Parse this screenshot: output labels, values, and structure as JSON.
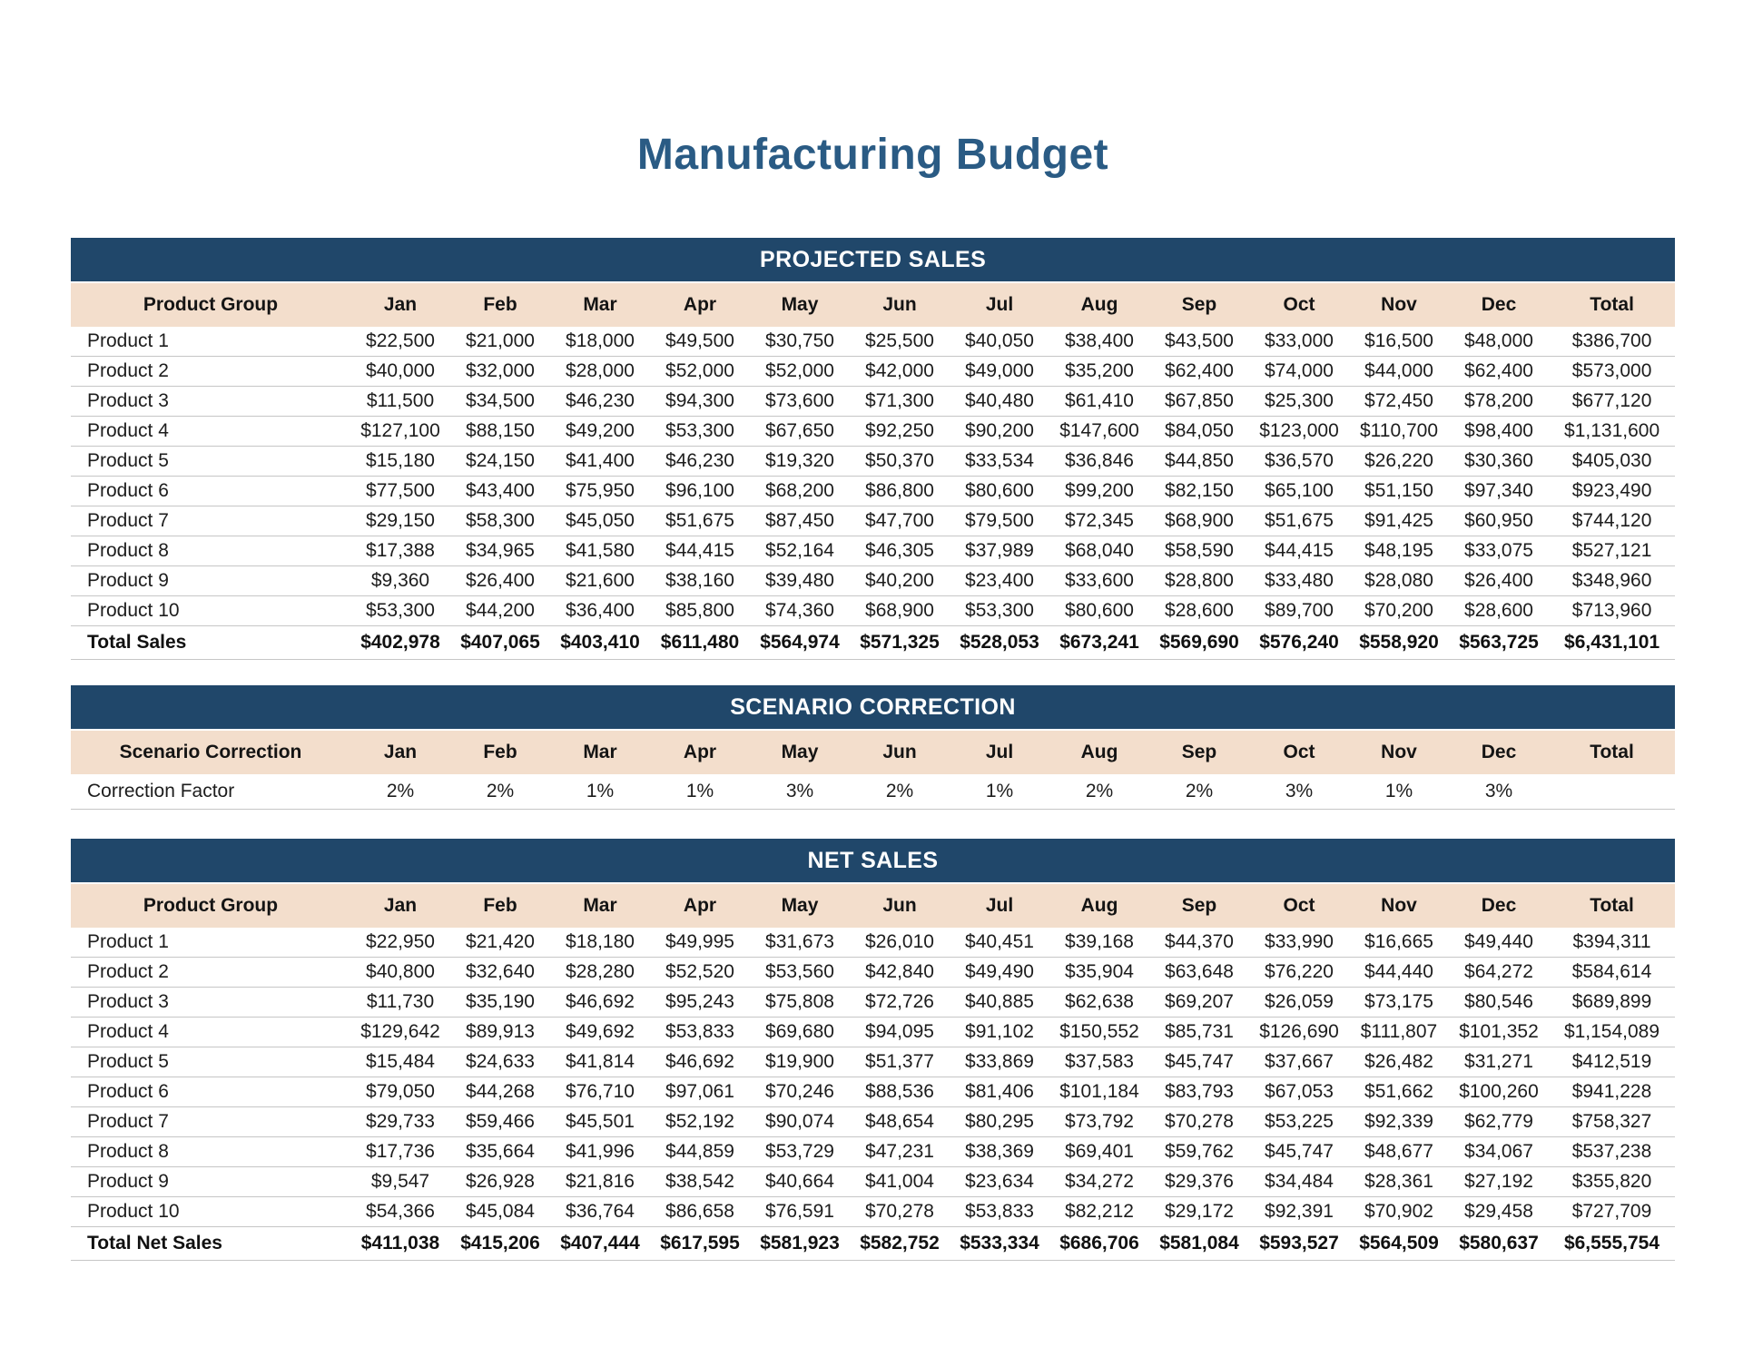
{
  "title": "Manufacturing Budget",
  "months": [
    "Jan",
    "Feb",
    "Mar",
    "Apr",
    "May",
    "Jun",
    "Jul",
    "Aug",
    "Sep",
    "Oct",
    "Nov",
    "Dec"
  ],
  "total_column_label": "Total",
  "colors": {
    "header_bar": "#20476A",
    "column_header_bg": "#F3DECC",
    "title_text": "#2A5B84",
    "bar_text": "#FFFFFF",
    "row_divider": "#C6C6C6",
    "body_text": "#1D1D1D"
  },
  "sections": {
    "projected_sales": {
      "section_title": "PROJECTED SALES",
      "group_header": "Product Group",
      "rows": [
        {
          "label": "Product 1",
          "values": [
            "$22,500",
            "$21,000",
            "$18,000",
            "$49,500",
            "$30,750",
            "$25,500",
            "$40,050",
            "$38,400",
            "$43,500",
            "$33,000",
            "$16,500",
            "$48,000"
          ],
          "total": "$386,700"
        },
        {
          "label": "Product 2",
          "values": [
            "$40,000",
            "$32,000",
            "$28,000",
            "$52,000",
            "$52,000",
            "$42,000",
            "$49,000",
            "$35,200",
            "$62,400",
            "$74,000",
            "$44,000",
            "$62,400"
          ],
          "total": "$573,000"
        },
        {
          "label": "Product 3",
          "values": [
            "$11,500",
            "$34,500",
            "$46,230",
            "$94,300",
            "$73,600",
            "$71,300",
            "$40,480",
            "$61,410",
            "$67,850",
            "$25,300",
            "$72,450",
            "$78,200"
          ],
          "total": "$677,120"
        },
        {
          "label": "Product 4",
          "values": [
            "$127,100",
            "$88,150",
            "$49,200",
            "$53,300",
            "$67,650",
            "$92,250",
            "$90,200",
            "$147,600",
            "$84,050",
            "$123,000",
            "$110,700",
            "$98,400"
          ],
          "total": "$1,131,600"
        },
        {
          "label": "Product 5",
          "values": [
            "$15,180",
            "$24,150",
            "$41,400",
            "$46,230",
            "$19,320",
            "$50,370",
            "$33,534",
            "$36,846",
            "$44,850",
            "$36,570",
            "$26,220",
            "$30,360"
          ],
          "total": "$405,030"
        },
        {
          "label": "Product 6",
          "values": [
            "$77,500",
            "$43,400",
            "$75,950",
            "$96,100",
            "$68,200",
            "$86,800",
            "$80,600",
            "$99,200",
            "$82,150",
            "$65,100",
            "$51,150",
            "$97,340"
          ],
          "total": "$923,490"
        },
        {
          "label": "Product 7",
          "values": [
            "$29,150",
            "$58,300",
            "$45,050",
            "$51,675",
            "$87,450",
            "$47,700",
            "$79,500",
            "$72,345",
            "$68,900",
            "$51,675",
            "$91,425",
            "$60,950"
          ],
          "total": "$744,120"
        },
        {
          "label": "Product 8",
          "values": [
            "$17,388",
            "$34,965",
            "$41,580",
            "$44,415",
            "$52,164",
            "$46,305",
            "$37,989",
            "$68,040",
            "$58,590",
            "$44,415",
            "$48,195",
            "$33,075"
          ],
          "total": "$527,121"
        },
        {
          "label": "Product 9",
          "values": [
            "$9,360",
            "$26,400",
            "$21,600",
            "$38,160",
            "$39,480",
            "$40,200",
            "$23,400",
            "$33,600",
            "$28,800",
            "$33,480",
            "$28,080",
            "$26,400"
          ],
          "total": "$348,960"
        },
        {
          "label": "Product 10",
          "values": [
            "$53,300",
            "$44,200",
            "$36,400",
            "$85,800",
            "$74,360",
            "$68,900",
            "$53,300",
            "$80,600",
            "$28,600",
            "$89,700",
            "$70,200",
            "$28,600"
          ],
          "total": "$713,960"
        }
      ],
      "total_row": {
        "label": "Total Sales",
        "values": [
          "$402,978",
          "$407,065",
          "$403,410",
          "$611,480",
          "$564,974",
          "$571,325",
          "$528,053",
          "$673,241",
          "$569,690",
          "$576,240",
          "$558,920",
          "$563,725"
        ],
        "total": "$6,431,101"
      }
    },
    "scenario_correction": {
      "section_title": "SCENARIO CORRECTION",
      "group_header": "Scenario Correction",
      "rows": [
        {
          "label": "Correction Factor",
          "values": [
            "2%",
            "2%",
            "1%",
            "1%",
            "3%",
            "2%",
            "1%",
            "2%",
            "2%",
            "3%",
            "1%",
            "3%"
          ],
          "total": ""
        }
      ]
    },
    "net_sales": {
      "section_title": "NET SALES",
      "group_header": "Product Group",
      "rows": [
        {
          "label": "Product 1",
          "values": [
            "$22,950",
            "$21,420",
            "$18,180",
            "$49,995",
            "$31,673",
            "$26,010",
            "$40,451",
            "$39,168",
            "$44,370",
            "$33,990",
            "$16,665",
            "$49,440"
          ],
          "total": "$394,311"
        },
        {
          "label": "Product 2",
          "values": [
            "$40,800",
            "$32,640",
            "$28,280",
            "$52,520",
            "$53,560",
            "$42,840",
            "$49,490",
            "$35,904",
            "$63,648",
            "$76,220",
            "$44,440",
            "$64,272"
          ],
          "total": "$584,614"
        },
        {
          "label": "Product 3",
          "values": [
            "$11,730",
            "$35,190",
            "$46,692",
            "$95,243",
            "$75,808",
            "$72,726",
            "$40,885",
            "$62,638",
            "$69,207",
            "$26,059",
            "$73,175",
            "$80,546"
          ],
          "total": "$689,899"
        },
        {
          "label": "Product 4",
          "values": [
            "$129,642",
            "$89,913",
            "$49,692",
            "$53,833",
            "$69,680",
            "$94,095",
            "$91,102",
            "$150,552",
            "$85,731",
            "$126,690",
            "$111,807",
            "$101,352"
          ],
          "total": "$1,154,089"
        },
        {
          "label": "Product 5",
          "values": [
            "$15,484",
            "$24,633",
            "$41,814",
            "$46,692",
            "$19,900",
            "$51,377",
            "$33,869",
            "$37,583",
            "$45,747",
            "$37,667",
            "$26,482",
            "$31,271"
          ],
          "total": "$412,519"
        },
        {
          "label": "Product 6",
          "values": [
            "$79,050",
            "$44,268",
            "$76,710",
            "$97,061",
            "$70,246",
            "$88,536",
            "$81,406",
            "$101,184",
            "$83,793",
            "$67,053",
            "$51,662",
            "$100,260"
          ],
          "total": "$941,228"
        },
        {
          "label": "Product 7",
          "values": [
            "$29,733",
            "$59,466",
            "$45,501",
            "$52,192",
            "$90,074",
            "$48,654",
            "$80,295",
            "$73,792",
            "$70,278",
            "$53,225",
            "$92,339",
            "$62,779"
          ],
          "total": "$758,327"
        },
        {
          "label": "Product 8",
          "values": [
            "$17,736",
            "$35,664",
            "$41,996",
            "$44,859",
            "$53,729",
            "$47,231",
            "$38,369",
            "$69,401",
            "$59,762",
            "$45,747",
            "$48,677",
            "$34,067"
          ],
          "total": "$537,238"
        },
        {
          "label": "Product 9",
          "values": [
            "$9,547",
            "$26,928",
            "$21,816",
            "$38,542",
            "$40,664",
            "$41,004",
            "$23,634",
            "$34,272",
            "$29,376",
            "$34,484",
            "$28,361",
            "$27,192"
          ],
          "total": "$355,820"
        },
        {
          "label": "Product 10",
          "values": [
            "$54,366",
            "$45,084",
            "$36,764",
            "$86,658",
            "$76,591",
            "$70,278",
            "$53,833",
            "$82,212",
            "$29,172",
            "$92,391",
            "$70,902",
            "$29,458"
          ],
          "total": "$727,709"
        }
      ],
      "total_row": {
        "label": "Total Net Sales",
        "values": [
          "$411,038",
          "$415,206",
          "$407,444",
          "$617,595",
          "$581,923",
          "$582,752",
          "$533,334",
          "$686,706",
          "$581,084",
          "$593,527",
          "$564,509",
          "$580,637"
        ],
        "total": "$6,555,754"
      }
    }
  }
}
